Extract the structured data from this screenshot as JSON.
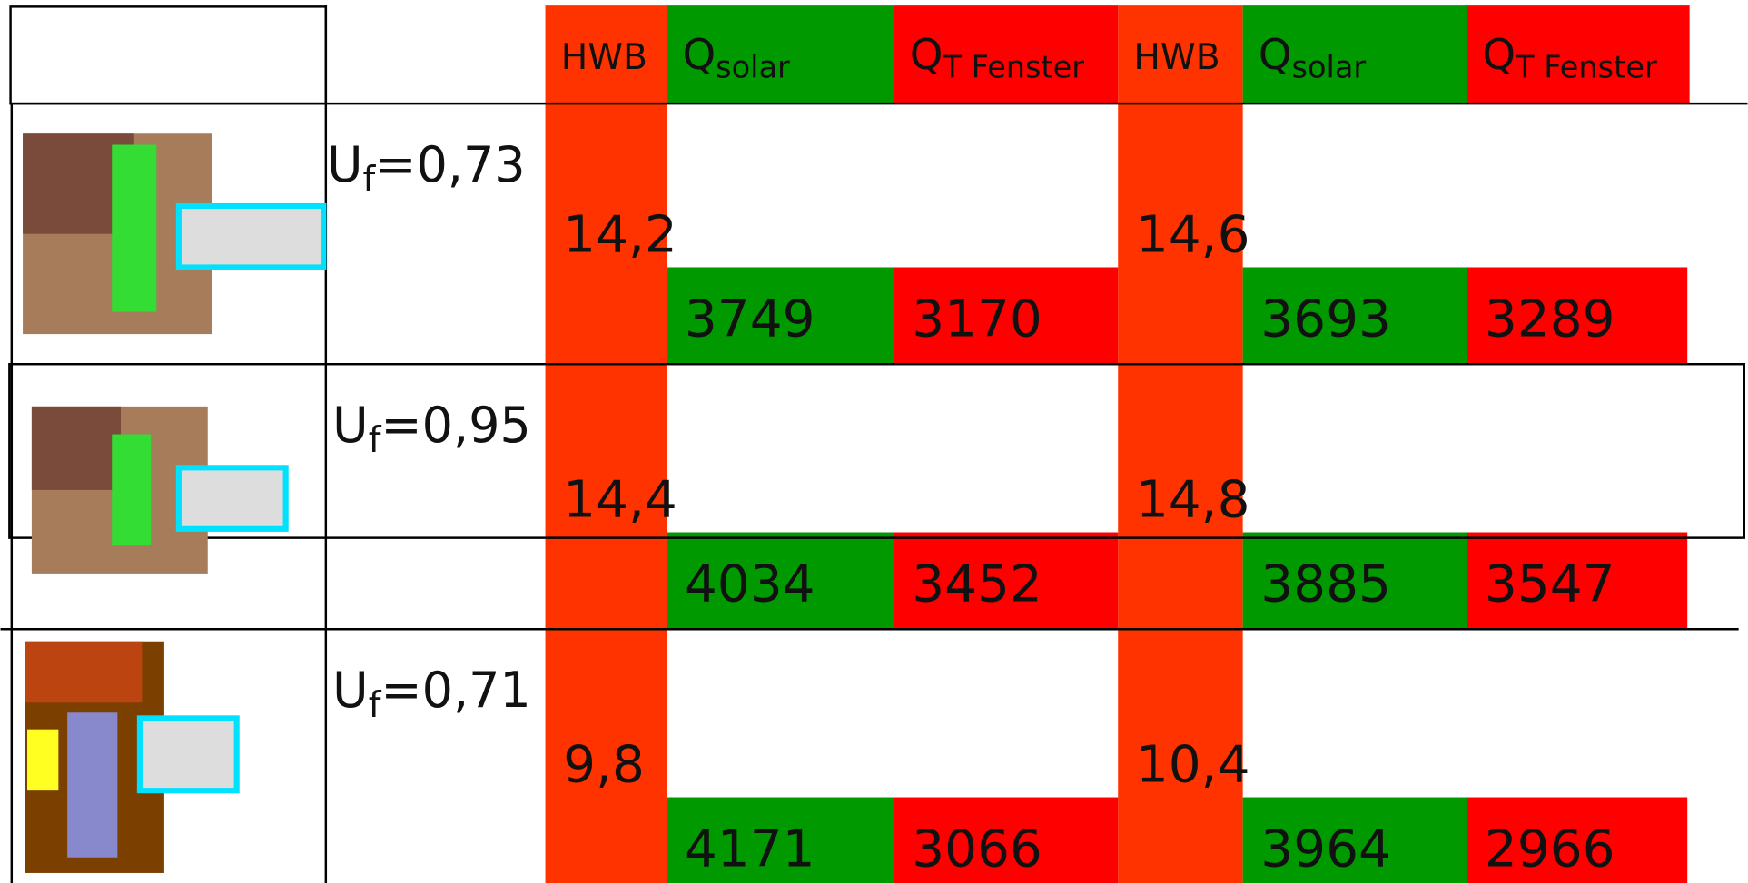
{
  "columns": [
    {
      "main": "HWB"
    },
    {
      "main": "Q",
      "sub": "solar"
    },
    {
      "main": "Q",
      "sub": "T Fenster"
    },
    {
      "main": "HWB"
    },
    {
      "main": "Q",
      "sub": "solar"
    },
    {
      "main": "Q",
      "sub": "T Fenster"
    }
  ],
  "rows": [
    {
      "label": {
        "main": "U",
        "sub": "f",
        "rest": "=0,73"
      },
      "values": [
        "14,2",
        "3749",
        "3170",
        "14,6",
        "3693",
        "3289"
      ]
    },
    {
      "label": {
        "main": "U",
        "sub": "f",
        "rest": "=0,95"
      },
      "values": [
        "14,4",
        "4034",
        "3452",
        "14,8",
        "3885",
        "3547"
      ]
    },
    {
      "label": {
        "main": "U",
        "sub": "f",
        "rest": "=0,71"
      },
      "values": [
        "9,8",
        "4171",
        "3066",
        "10,4",
        "3964",
        "2966"
      ]
    }
  ]
}
